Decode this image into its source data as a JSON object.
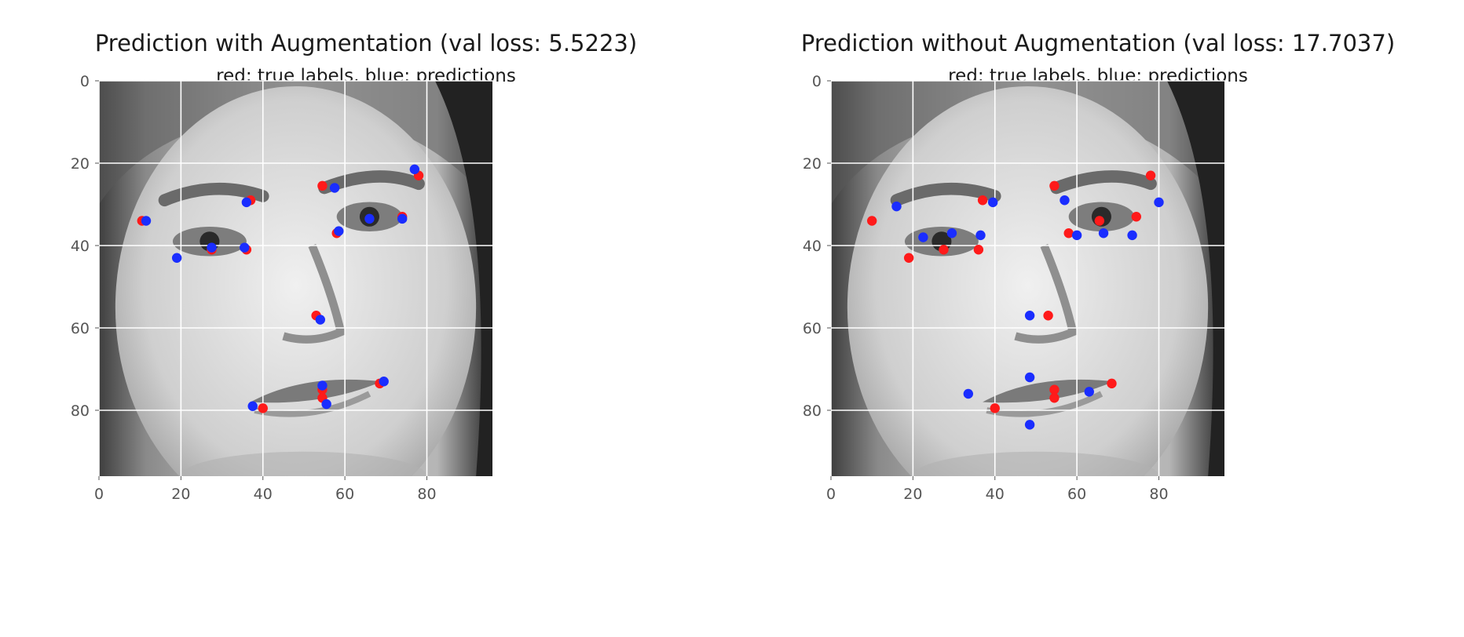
{
  "charts": [
    {
      "title": "Prediction with Augmentation (val loss: 5.5223)",
      "subtitle": "red: true labels, blue: predictions"
    },
    {
      "title": "Prediction without Augmentation (val loss: 17.7037)",
      "subtitle": "red: true labels, blue: predictions"
    }
  ],
  "chart_data": [
    {
      "type": "scatter",
      "title": "Prediction with Augmentation (val loss: 5.5223)",
      "subtitle": "red: true labels, blue: predictions",
      "background": "grayscale face image (96x96)",
      "xlim": [
        0,
        96
      ],
      "ylim": [
        96,
        0
      ],
      "y_inverted": true,
      "xticks": [
        0,
        20,
        40,
        60,
        80
      ],
      "yticks": [
        0,
        20,
        40,
        60,
        80
      ],
      "grid": true,
      "series": [
        {
          "name": "true labels",
          "color": "#ff1a1a",
          "points": [
            [
              10.5,
              34
            ],
            [
              27.5,
              41
            ],
            [
              36,
              41
            ],
            [
              37,
              29
            ],
            [
              54.5,
              25.5
            ],
            [
              78,
              23
            ],
            [
              74,
              33
            ],
            [
              58,
              37
            ],
            [
              53,
              57
            ],
            [
              40,
              79.5
            ],
            [
              54.5,
              75
            ],
            [
              54.5,
              77
            ],
            [
              68.5,
              73.5
            ]
          ]
        },
        {
          "name": "predictions",
          "color": "#1a2dff",
          "points": [
            [
              11.5,
              34
            ],
            [
              19,
              43
            ],
            [
              27.5,
              40.5
            ],
            [
              35.5,
              40.5
            ],
            [
              36,
              29.5
            ],
            [
              57.5,
              26
            ],
            [
              77,
              21.5
            ],
            [
              74,
              33.5
            ],
            [
              66,
              33.5
            ],
            [
              58.5,
              36.5
            ],
            [
              54,
              58
            ],
            [
              54.5,
              74
            ],
            [
              55.5,
              78.5
            ],
            [
              37.5,
              79
            ],
            [
              69.5,
              73
            ]
          ]
        }
      ]
    },
    {
      "type": "scatter",
      "title": "Prediction without Augmentation (val loss: 17.7037)",
      "subtitle": "red: true labels, blue: predictions",
      "background": "grayscale face image (96x96)",
      "xlim": [
        0,
        96
      ],
      "ylim": [
        96,
        0
      ],
      "y_inverted": true,
      "xticks": [
        0,
        20,
        40,
        60,
        80
      ],
      "yticks": [
        0,
        20,
        40,
        60,
        80
      ],
      "grid": true,
      "series": [
        {
          "name": "true labels",
          "color": "#ff1a1a",
          "points": [
            [
              10,
              34
            ],
            [
              19,
              43
            ],
            [
              27.5,
              41
            ],
            [
              36,
              41
            ],
            [
              37,
              29
            ],
            [
              54.5,
              25.5
            ],
            [
              78,
              23
            ],
            [
              74.5,
              33
            ],
            [
              65.5,
              34
            ],
            [
              58,
              37
            ],
            [
              53,
              57
            ],
            [
              40,
              79.5
            ],
            [
              54.5,
              75
            ],
            [
              54.5,
              77
            ],
            [
              68.5,
              73.5
            ]
          ]
        },
        {
          "name": "predictions",
          "color": "#1a2dff",
          "points": [
            [
              16,
              30.5
            ],
            [
              22.5,
              38
            ],
            [
              29.5,
              37
            ],
            [
              36.5,
              37.5
            ],
            [
              39.5,
              29.5
            ],
            [
              57,
              29
            ],
            [
              60,
              37.5
            ],
            [
              66.5,
              37
            ],
            [
              73.5,
              37.5
            ],
            [
              80,
              29.5
            ],
            [
              48.5,
              57
            ],
            [
              48.5,
              72
            ],
            [
              33.5,
              76
            ],
            [
              63,
              75.5
            ],
            [
              48.5,
              83.5
            ]
          ]
        }
      ]
    }
  ]
}
